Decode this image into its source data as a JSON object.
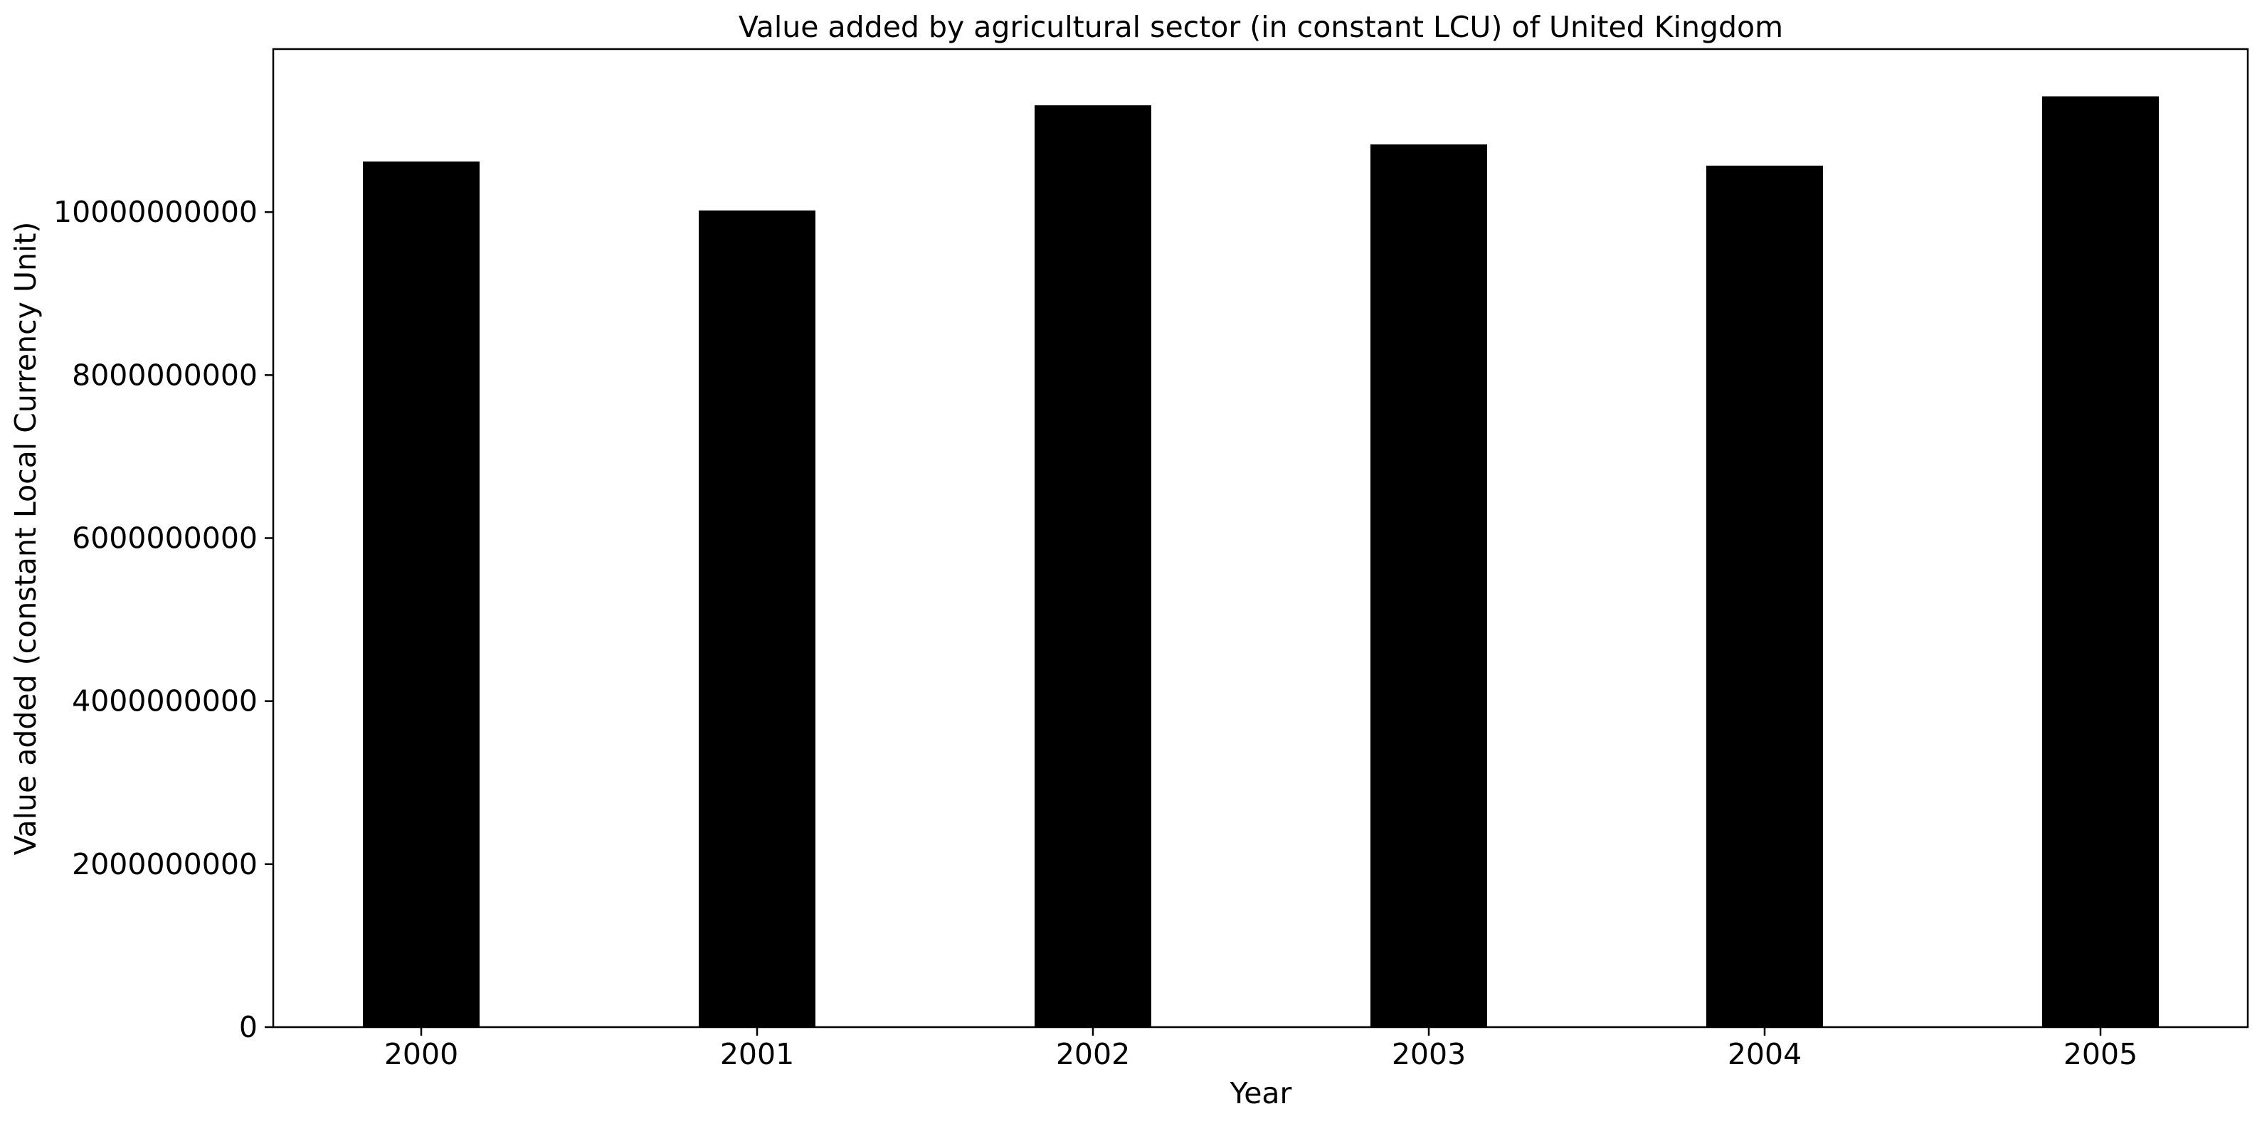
{
  "chart_data": {
    "type": "bar",
    "title": "Value added by agricultural sector (in constant LCU) of United Kingdom",
    "xlabel": "Year",
    "ylabel": "Value added (constant Local Currency Unit)",
    "categories": [
      "2000",
      "2001",
      "2002",
      "2003",
      "2004",
      "2005"
    ],
    "values": [
      10620000000,
      10020000000,
      11310000000,
      10830000000,
      10570000000,
      11420000000
    ],
    "ylim": [
      0,
      12000000000
    ],
    "yticks": [
      0,
      2000000000,
      4000000000,
      6000000000,
      8000000000,
      10000000000
    ],
    "ytick_labels": [
      "0",
      "2000000000",
      "4000000000",
      "6000000000",
      "8000000000",
      "10000000000"
    ],
    "bar_color": "#000000",
    "grid": false,
    "legend": "none"
  }
}
